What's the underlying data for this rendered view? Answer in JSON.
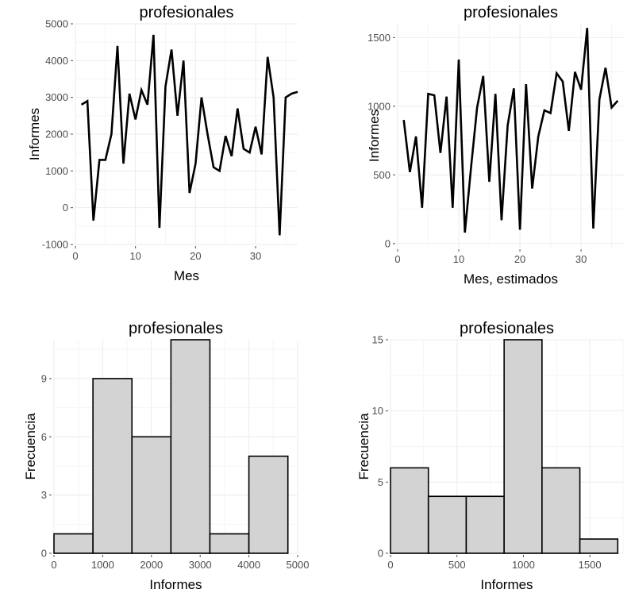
{
  "chart_data": [
    {
      "type": "line",
      "title": "profesionales",
      "xlabel": "Mes",
      "ylabel": "Informes",
      "xlim": [
        0,
        37
      ],
      "ylim": [
        -1000,
        5000
      ],
      "xticks": [
        "0",
        "10",
        "20",
        "30"
      ],
      "yticks": [
        "-1000",
        "0",
        "1000",
        "2000",
        "3000",
        "4000",
        "5000"
      ],
      "x": [
        1,
        2,
        3,
        4,
        5,
        6,
        7,
        8,
        9,
        10,
        11,
        12,
        13,
        14,
        15,
        16,
        17,
        18,
        19,
        20,
        21,
        22,
        23,
        24,
        25,
        26,
        27,
        28,
        29,
        30,
        31,
        32,
        33,
        34,
        35,
        36,
        37
      ],
      "y": [
        2800,
        2900,
        -350,
        1300,
        1300,
        2000,
        4400,
        1200,
        3100,
        2400,
        3200,
        2800,
        4700,
        -550,
        3300,
        4300,
        2500,
        4000,
        400,
        1200,
        3000,
        2000,
        1100,
        1000,
        1950,
        1400,
        2700,
        1600,
        1500,
        2200,
        1450,
        4100,
        3000,
        -750,
        3000,
        3100,
        3150
      ]
    },
    {
      "type": "line",
      "title": "profesionales",
      "xlabel": "Mes, estimados",
      "ylabel": "Informes",
      "xlim": [
        0,
        37
      ],
      "ylim": [
        -30,
        1600
      ],
      "xticks": [
        "0",
        "10",
        "20",
        "30"
      ],
      "yticks": [
        "0",
        "500",
        "1000",
        "1500"
      ],
      "x": [
        1,
        2,
        3,
        4,
        5,
        6,
        7,
        8,
        9,
        10,
        11,
        12,
        13,
        14,
        15,
        16,
        17,
        18,
        19,
        20,
        21,
        22,
        23,
        24,
        25,
        26,
        27,
        28,
        29,
        30,
        31,
        32,
        33,
        34,
        35,
        36
      ],
      "y": [
        900,
        520,
        780,
        260,
        1090,
        1080,
        660,
        1070,
        260,
        1340,
        80,
        550,
        990,
        1220,
        450,
        1090,
        170,
        860,
        1130,
        100,
        1160,
        400,
        780,
        970,
        950,
        1240,
        1180,
        820,
        1250,
        1120,
        1570,
        110,
        1050,
        1280,
        990,
        1040
      ]
    },
    {
      "type": "bar",
      "title": "profesionales",
      "xlabel": "Informes",
      "ylabel": "Frecuencia",
      "xlim": [
        0,
        5000
      ],
      "ylim": [
        0,
        11
      ],
      "xticks": [
        "0",
        "1000",
        "2000",
        "3000",
        "4000",
        "5000"
      ],
      "yticks": [
        "0",
        "3",
        "6",
        "9"
      ],
      "bin_edges": [
        0,
        800,
        1600,
        2400,
        3200,
        4000,
        4800
      ],
      "values": [
        1,
        9,
        6,
        11,
        1,
        5
      ]
    },
    {
      "type": "bar",
      "title": "profesionales",
      "xlabel": "Informes",
      "ylabel": "Frecuencia",
      "xlim": [
        0,
        1750
      ],
      "ylim": [
        0,
        15
      ],
      "xticks": [
        "0",
        "500",
        "1000",
        "1500"
      ],
      "yticks": [
        "0",
        "5",
        "10",
        "15"
      ],
      "bin_edges": [
        0,
        285,
        570,
        855,
        1140,
        1425,
        1710
      ],
      "values": [
        6,
        4,
        4,
        15,
        6,
        1
      ]
    }
  ]
}
